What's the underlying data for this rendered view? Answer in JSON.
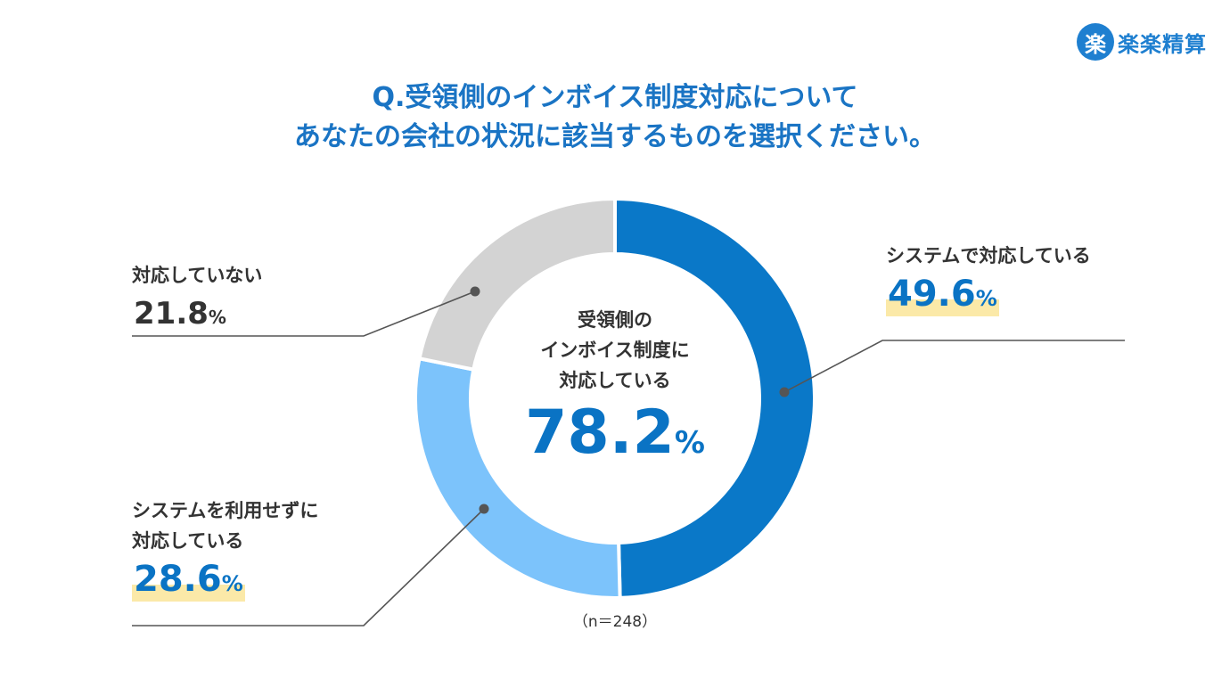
{
  "logo": {
    "mark": "楽",
    "text": "楽楽精算"
  },
  "title": {
    "line1": "Q.受領側のインボイス制度対応について",
    "line2": "あなたの会社の状況に該当するものを選択ください。"
  },
  "center": {
    "label": "受領側の\nインボイス制度に\n対応している",
    "value": "78.2",
    "unit": "%"
  },
  "sample_size": "（n＝248）",
  "chart_data": {
    "type": "pie",
    "title": "Q.受領側のインボイス制度対応について あなたの会社の状況に該当するものを選択ください。",
    "categories": [
      "システムで対応している",
      "システムを利用せずに対応している",
      "対応していない"
    ],
    "values": [
      49.6,
      28.6,
      21.8
    ],
    "unit": "%",
    "colors": [
      "#0a78c8",
      "#7cc3fb",
      "#d3d3d3"
    ],
    "donut": true,
    "labels": [
      {
        "name": "システムで対応している",
        "value": "49.6",
        "unit": "%",
        "highlight": true
      },
      {
        "name": "システムを利用せずに\n対応している",
        "value": "28.6",
        "unit": "%",
        "highlight": true
      },
      {
        "name": "対応していない",
        "value": "21.8",
        "unit": "%",
        "highlight": false
      }
    ]
  }
}
